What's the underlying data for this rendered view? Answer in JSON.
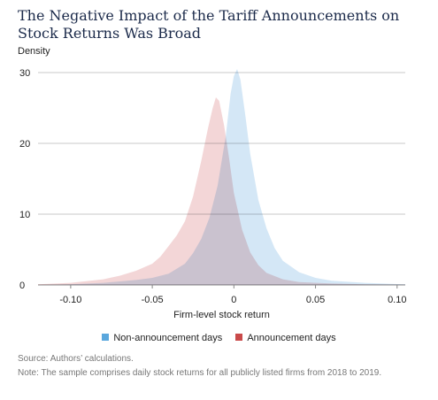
{
  "figure": {
    "title": "The Negative Impact of the Tariff Announcements on Stock Returns Was Broad",
    "source": "Source: Authors’ calculations.",
    "note": "Note: The sample comprises daily stock returns for all publicly listed firms from 2018 to 2019."
  },
  "chart_data": {
    "type": "area",
    "title": "The Negative Impact of the Tariff Announcements on Stock Returns Was Broad",
    "xlabel": "Firm-level stock return",
    "ylabel": "Density",
    "xlim": [
      -0.12,
      0.105
    ],
    "ylim": [
      0,
      30
    ],
    "x_ticks": [
      "-0.10",
      "-0.05",
      "0",
      "0.05",
      "0.10"
    ],
    "y_ticks": [
      "0",
      "10",
      "20",
      "30"
    ],
    "grid": "horizontal",
    "legend_position": "bottom",
    "series": [
      {
        "name": "Non-announcement days",
        "color": "#cde3f5",
        "swatch": "#5aa7dd",
        "points": [
          [
            -0.12,
            0.0
          ],
          [
            -0.1,
            0.1
          ],
          [
            -0.08,
            0.3
          ],
          [
            -0.06,
            0.7
          ],
          [
            -0.05,
            1.0
          ],
          [
            -0.04,
            1.6
          ],
          [
            -0.03,
            3.0
          ],
          [
            -0.025,
            4.5
          ],
          [
            -0.02,
            6.5
          ],
          [
            -0.015,
            9.5
          ],
          [
            -0.01,
            14.0
          ],
          [
            -0.005,
            21.0
          ],
          [
            -0.002,
            27.0
          ],
          [
            0.0,
            29.5
          ],
          [
            0.002,
            30.5
          ],
          [
            0.004,
            29.0
          ],
          [
            0.007,
            24.0
          ],
          [
            0.01,
            18.5
          ],
          [
            0.015,
            12.0
          ],
          [
            0.02,
            8.0
          ],
          [
            0.025,
            5.2
          ],
          [
            0.03,
            3.4
          ],
          [
            0.04,
            1.8
          ],
          [
            0.05,
            1.0
          ],
          [
            0.06,
            0.6
          ],
          [
            0.08,
            0.3
          ],
          [
            0.1,
            0.12
          ],
          [
            0.105,
            0.1
          ]
        ]
      },
      {
        "name": "Announcement days",
        "color": "#efc8ca",
        "swatch": "#c94a4a",
        "points": [
          [
            -0.12,
            0.1
          ],
          [
            -0.1,
            0.3
          ],
          [
            -0.08,
            0.8
          ],
          [
            -0.07,
            1.3
          ],
          [
            -0.06,
            2.0
          ],
          [
            -0.05,
            3.0
          ],
          [
            -0.045,
            4.0
          ],
          [
            -0.04,
            5.5
          ],
          [
            -0.035,
            7.0
          ],
          [
            -0.03,
            9.0
          ],
          [
            -0.025,
            12.5
          ],
          [
            -0.02,
            17.5
          ],
          [
            -0.016,
            22.0
          ],
          [
            -0.013,
            25.0
          ],
          [
            -0.011,
            26.5
          ],
          [
            -0.009,
            26.0
          ],
          [
            -0.006,
            22.5
          ],
          [
            -0.003,
            18.0
          ],
          [
            0.0,
            13.0
          ],
          [
            0.005,
            7.8
          ],
          [
            0.01,
            4.6
          ],
          [
            0.015,
            2.8
          ],
          [
            0.02,
            1.7
          ],
          [
            0.03,
            0.8
          ],
          [
            0.04,
            0.4
          ],
          [
            0.06,
            0.2
          ],
          [
            0.08,
            0.1
          ],
          [
            0.105,
            0.05
          ]
        ]
      }
    ]
  }
}
